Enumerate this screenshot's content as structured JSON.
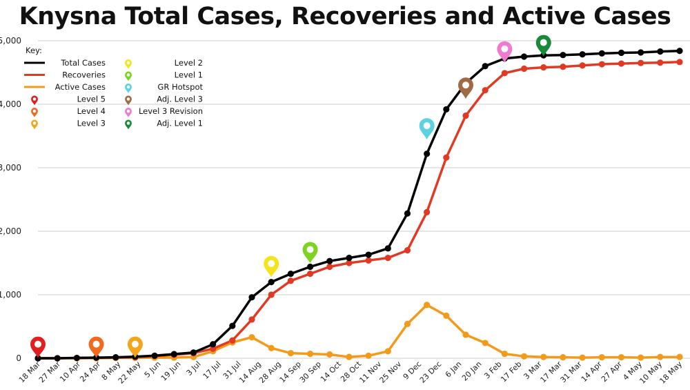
{
  "chart_data": {
    "type": "line",
    "title": "Knysna Total Cases, Recoveries and Active Cases",
    "xlabel": "",
    "ylabel": "",
    "ylim": [
      0,
      5000
    ],
    "yticks": [
      "0",
      "1,000",
      "2,000",
      "3,000",
      "4,000",
      "5,000"
    ],
    "grid": true,
    "legend_placement": "top-left",
    "legend_title": "Key:",
    "x_tick_labels": [
      "18 Mar",
      "27 Mar",
      "10 Apr",
      "24 Apr",
      "8 May",
      "22 May",
      "5 Jun",
      "19 Jun",
      "3 Jul",
      "17 Jul",
      "31 Jul",
      "14 Aug",
      "28 Aug",
      "14 Sep",
      "30 Sep",
      "14 Oct",
      "28 Oct",
      "11 Nov",
      "25 Nov",
      "9 Dec",
      "23 Dec",
      "6 Jan",
      "20 Jan",
      "3 Feb",
      "17 Feb",
      "3 Mar",
      "17 Mar",
      "31 Mar",
      "14 Apr",
      "27 Apr",
      "4 May",
      "10 May",
      "18 May"
    ],
    "x": [
      "18 Mar",
      "27 Mar",
      "10 Apr",
      "24 Apr",
      "8 May",
      "22 May",
      "",
      "5 Jun",
      "19 Jun",
      "3 Jul",
      "17 Jul",
      "31 Jul",
      "14 Aug",
      "28 Aug",
      "14 Sep",
      "30 Sep",
      "14 Oct",
      "28 Oct",
      "11 Nov",
      "25 Nov",
      "9 Dec",
      "23 Dec",
      "6 Jan",
      "20 Jan",
      "3 Feb",
      "17 Feb",
      "3 Mar",
      "17 Mar",
      "31 Mar",
      "14 Apr",
      "27 Apr",
      "4 May",
      "10 May",
      "18 May"
    ],
    "series": [
      {
        "name": "Total Cases",
        "color": "#000000",
        "values": [
          0,
          0,
          5,
          10,
          15,
          25,
          40,
          65,
          90,
          220,
          510,
          960,
          1200,
          1330,
          1440,
          1530,
          1580,
          1630,
          1730,
          2280,
          3220,
          3920,
          4330,
          4600,
          4720,
          4750,
          4770,
          4775,
          4785,
          4800,
          4810,
          4815,
          4830,
          4840
        ]
      },
      {
        "name": "Recoveries",
        "color": "#e03a24",
        "values": [
          0,
          0,
          5,
          8,
          10,
          20,
          35,
          55,
          80,
          150,
          280,
          610,
          1000,
          1220,
          1330,
          1440,
          1500,
          1540,
          1580,
          1700,
          2300,
          3160,
          3820,
          4220,
          4490,
          4560,
          4580,
          4590,
          4610,
          4630,
          4640,
          4650,
          4655,
          4665
        ]
      },
      {
        "name": "Active Cases",
        "color": "#f39a1a",
        "values": [
          0,
          0,
          0,
          0,
          5,
          5,
          10,
          10,
          20,
          110,
          250,
          330,
          160,
          80,
          70,
          60,
          20,
          40,
          110,
          540,
          840,
          670,
          370,
          240,
          70,
          30,
          20,
          15,
          10,
          15,
          15,
          10,
          20,
          20
        ]
      }
    ],
    "markers": [
      {
        "name": "Level 5",
        "color": "#e02020",
        "x_index": 0,
        "y": 200
      },
      {
        "name": "Level 4",
        "color": "#f06a1f",
        "x_index": 3,
        "y": 200
      },
      {
        "name": "Level 3",
        "color": "#f3a51c",
        "x_index": 5,
        "y": 200
      },
      {
        "name": "Level 2",
        "color": "#f4e41c",
        "x_index": 12,
        "y": 1470
      },
      {
        "name": "Level 1",
        "color": "#7ed321",
        "x_index": 14,
        "y": 1690
      },
      {
        "name": "GR Hotspot",
        "color": "#5bd3e0",
        "x_index": 20,
        "y": 3640
      },
      {
        "name": "Adj. Level 3",
        "color": "#a06a45",
        "x_index": 22,
        "y": 4280
      },
      {
        "name": "Level 3 Revision",
        "color": "#f07ad0",
        "x_index": 24,
        "y": 4850
      },
      {
        "name": "Adj. Level 1",
        "color": "#1a8a3a",
        "x_index": 26,
        "y": 4950
      }
    ]
  }
}
